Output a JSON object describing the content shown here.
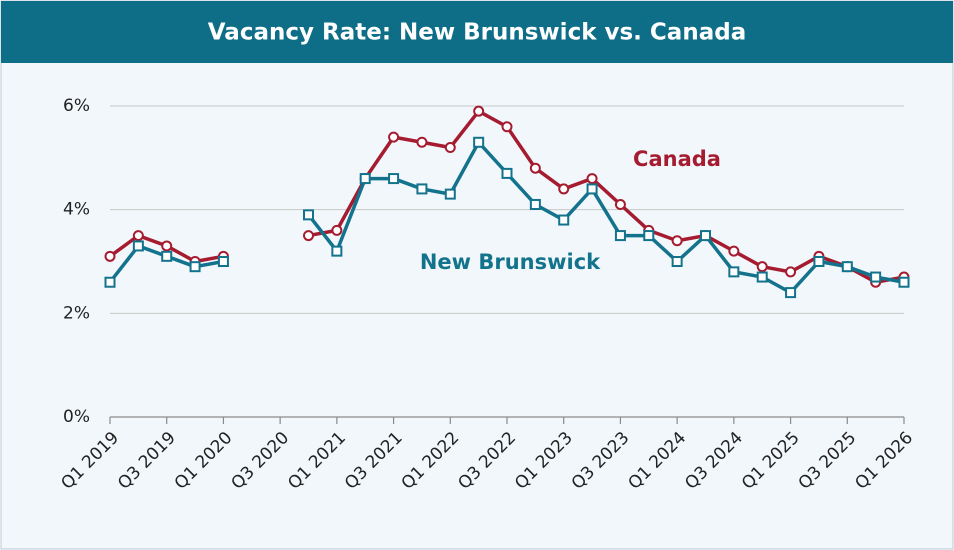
{
  "chart_data": {
    "type": "line",
    "title": "Vacancy Rate: New Brunswick vs. Canada",
    "categories": [
      "Q1 2019",
      null,
      "Q3 2019",
      null,
      "Q1 2020",
      null,
      "Q3 2020",
      null,
      "Q1 2021",
      null,
      "Q3 2021",
      null,
      "Q1 2022",
      null,
      "Q3 2022",
      null,
      "Q1 2023",
      null,
      "Q3 2023",
      null,
      "Q1 2024",
      null,
      "Q3 2024",
      null,
      "Q1 2025",
      null,
      "Q3 2025",
      null,
      "Q1 2026"
    ],
    "series": [
      {
        "name": "Canada",
        "color": "#a51c30",
        "values": [
          3.1,
          3.5,
          3.3,
          3.0,
          3.1,
          null,
          null,
          3.5,
          3.6,
          4.6,
          5.4,
          5.3,
          5.2,
          5.9,
          5.6,
          4.8,
          4.4,
          4.6,
          4.1,
          3.6,
          3.4,
          3.5,
          3.2,
          2.9,
          2.8,
          3.1,
          2.9,
          2.6,
          2.7
        ]
      },
      {
        "name": "New Brunswick",
        "color": "#13738d",
        "values": [
          2.6,
          3.3,
          3.1,
          2.9,
          3.0,
          null,
          null,
          3.9,
          3.2,
          4.6,
          4.6,
          4.4,
          4.3,
          5.3,
          4.7,
          4.1,
          3.8,
          4.4,
          3.5,
          3.5,
          3.0,
          3.5,
          2.8,
          2.7,
          2.4,
          3.0,
          2.9,
          2.7,
          2.6
        ]
      }
    ],
    "ylim": [
      0,
      6
    ],
    "yticks": [
      {
        "value": 0,
        "label": "0%"
      },
      {
        "value": 2,
        "label": "2%"
      },
      {
        "value": 4,
        "label": "4%"
      },
      {
        "value": 6,
        "label": "6%"
      }
    ],
    "grid": true
  }
}
